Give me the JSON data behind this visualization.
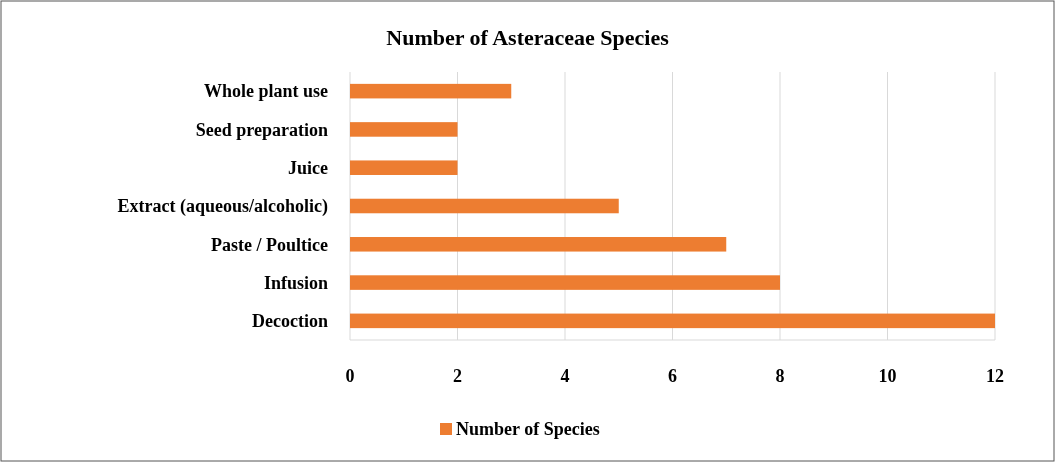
{
  "chart_data": {
    "type": "bar",
    "orientation": "horizontal",
    "title": "Number of Asteraceae Species",
    "categories": [
      "Whole plant use",
      "Seed preparation",
      "Juice",
      "Extract (aqueous/alcoholic)",
      "Paste / Poultice",
      "Infusion",
      "Decoction"
    ],
    "series": [
      {
        "name": "Number of Species",
        "color": "#ed7d31",
        "values": [
          3,
          2,
          2,
          5,
          7,
          8,
          12
        ]
      }
    ],
    "xlim": [
      0,
      12
    ],
    "xticks": [
      0,
      2,
      4,
      6,
      8,
      10,
      12
    ],
    "grid": "x",
    "legend": "bottom"
  }
}
